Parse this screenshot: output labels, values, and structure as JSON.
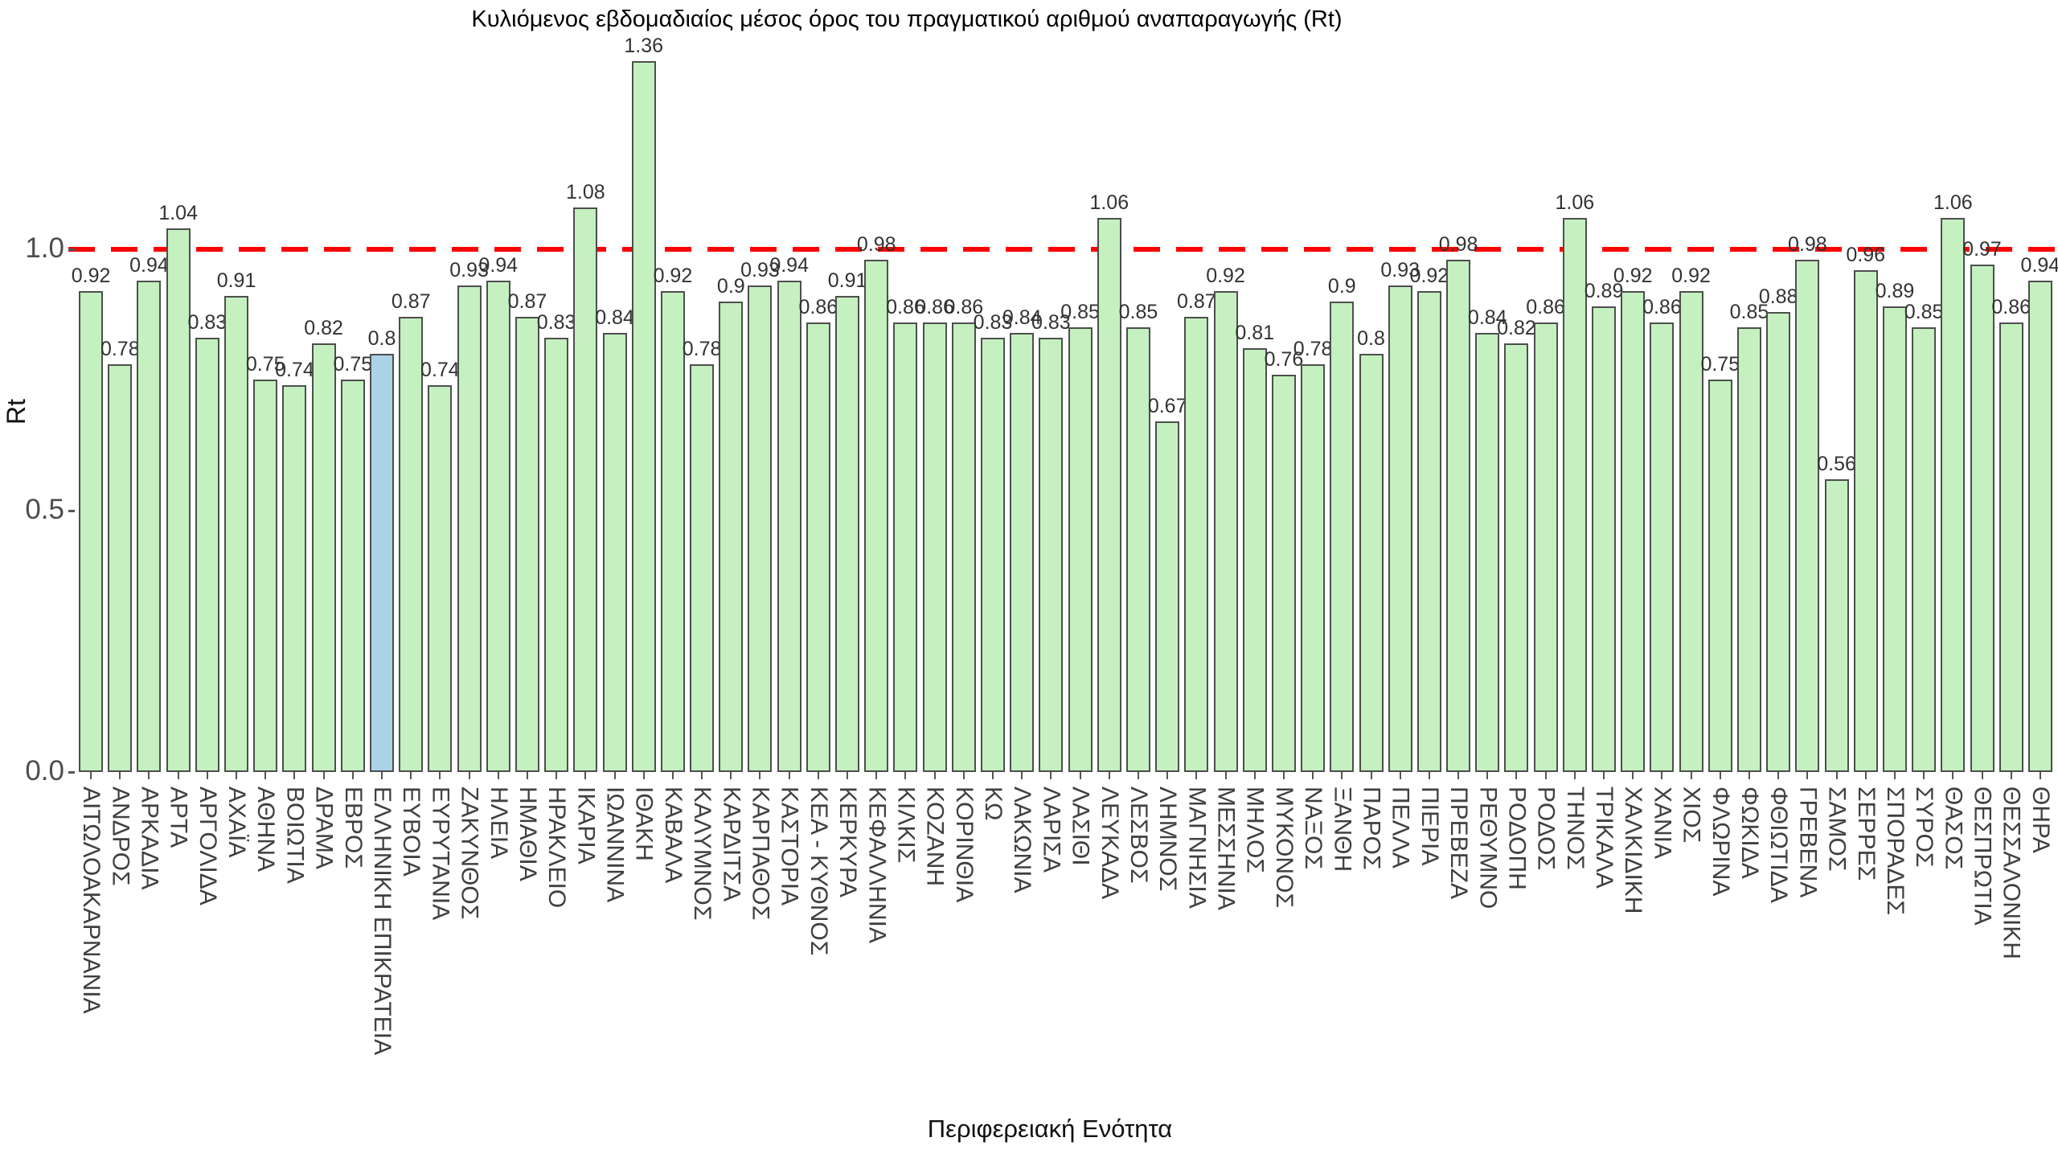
{
  "title": "Κυλιόμενος εβδομαδιαίος μέσος όρος του πραγματικού αριθμού αναπαραγωγής (Rt)",
  "axes": {
    "xlabel": "Περιφερειακή Ενότητα",
    "ylabel": "Rt",
    "yticks": [
      "0.0",
      "0.5",
      "1.0"
    ]
  },
  "colors": {
    "bar_fill": "#c4f1bf",
    "bar_highlight": "#abd3e8",
    "bar_border": "#4e4e4e",
    "reference_line": "#ff0000"
  },
  "chart_data": {
    "type": "bar",
    "title": "Κυλιόμενος εβδομαδιαίος μέσος όρος του πραγματικού αριθμού αναπαραγωγής (Rt)",
    "xlabel": "Περιφερειακή Ενότητα",
    "ylabel": "Rt",
    "ylim": [
      0,
      1.385
    ],
    "grid": false,
    "legend_position": "none",
    "reference_line": 1.0,
    "highlight_category": "ΕΛΛΗΝΙΚΗ ΕΠΙΚΡΑΤΕΙΑ",
    "categories": [
      "ΑΙΤΩΛΟΑΚΑΡΝΑΝΙΑ",
      "ΑΝΔΡΟΣ",
      "ΑΡΚΑΔΙΑ",
      "ΑΡΤΑ",
      "ΑΡΓΟΛΙΔΑ",
      "ΑΧΑΪΑ",
      "ΑΘΗΝΑ",
      "ΒΟΙΩΤΙΑ",
      "ΔΡΑΜΑ",
      "ΕΒΡΟΣ",
      "ΕΛΛΗΝΙΚΗ ΕΠΙΚΡΑΤΕΙΑ",
      "ΕΥΒΟΙΑ",
      "ΕΥΡΥΤΑΝΙΑ",
      "ΖΑΚΥΝΘΟΣ",
      "ΗΛΕΙΑ",
      "ΗΜΑΘΙΑ",
      "ΗΡΑΚΛΕΙΟ",
      "ΙΚΑΡΙΑ",
      "ΙΩΑΝΝΙΝΑ",
      "ΙΘΑΚΗ",
      "ΚΑΒΑΛΑ",
      "ΚΑΛΥΜΝΟΣ",
      "ΚΑΡΔΙΤΣΑ",
      "ΚΑΡΠΑΘΟΣ",
      "ΚΑΣΤΟΡΙΑ",
      "ΚΕΑ - ΚΥΘΝΟΣ",
      "ΚΕΡΚΥΡΑ",
      "ΚΕΦΑΛΛΗΝΙΑ",
      "ΚΙΛΚΙΣ",
      "ΚΟΖΑΝΗ",
      "ΚΟΡΙΝΘΙΑ",
      "ΚΩ",
      "ΛΑΚΩΝΙΑ",
      "ΛΑΡΙΣΑ",
      "ΛΑΣΙΘΙ",
      "ΛΕΥΚΑΔΑ",
      "ΛΕΣΒΟΣ",
      "ΛΗΜΝΟΣ",
      "ΜΑΓΝΗΣΙΑ",
      "ΜΕΣΣΗΝΙΑ",
      "ΜΗΛΟΣ",
      "ΜΥΚΟΝΟΣ",
      "ΝΑΞΟΣ",
      "ΞΑΝΘΗ",
      "ΠΑΡΟΣ",
      "ΠΕΛΛΑ",
      "ΠΙΕΡΙΑ",
      "ΠΡΕΒΕΖΑ",
      "ΡΕΘΥΜΝΟ",
      "ΡΟΔΟΠΗ",
      "ΡΟΔΟΣ",
      "ΤΗΝΟΣ",
      "ΤΡΙΚΑΛΑ",
      "ΧΑΛΚΙΔΙΚΗ",
      "ΧΑΝΙΑ",
      "ΧΙΟΣ",
      "ΦΛΩΡΙΝΑ",
      "ΦΩΚΙΔΑ",
      "ΦΘΙΩΤΙΔΑ",
      "ΓΡΕΒΕΝΑ",
      "ΣΑΜΟΣ",
      "ΣΕΡΡΕΣ",
      "ΣΠΟΡΑΔΕΣ",
      "ΣΥΡΟΣ",
      "ΘΑΣΟΣ",
      "ΘΕΣΠΡΩΤΙΑ",
      "ΘΕΣΣΑΛΟΝΙΚΗ",
      "ΘΗΡΑ"
    ],
    "values": [
      0.92,
      0.78,
      0.94,
      1.04,
      0.83,
      0.91,
      0.75,
      0.74,
      0.82,
      0.75,
      0.8,
      0.87,
      0.74,
      0.93,
      0.94,
      0.87,
      0.83,
      1.08,
      0.84,
      1.36,
      0.92,
      0.78,
      0.9,
      0.93,
      0.94,
      0.86,
      0.91,
      0.98,
      0.86,
      0.86,
      0.86,
      0.83,
      0.84,
      0.83,
      0.85,
      1.06,
      0.85,
      0.67,
      0.87,
      0.92,
      0.81,
      0.76,
      0.78,
      0.9,
      0.8,
      0.93,
      0.92,
      0.98,
      0.84,
      0.82,
      0.86,
      1.06,
      0.89,
      0.92,
      0.86,
      0.92,
      0.75,
      0.85,
      0.88,
      0.98,
      0.56,
      0.96,
      0.89,
      0.85,
      1.06,
      0.97,
      0.86,
      0.94
    ],
    "value_labels": [
      "0.92",
      "0.78",
      "0.94",
      "1.04",
      "0.83",
      "0.91",
      "0.75",
      "0.74",
      "0.82",
      "0.75",
      "0.8",
      "0.87",
      "0.74",
      "0.93",
      "0.94",
      "0.87",
      "0.83",
      "1.08",
      "0.84",
      "1.36",
      "0.92",
      "0.78",
      "0.9",
      "0.93",
      "0.94",
      "0.86",
      "0.91",
      "0.98",
      "0.86",
      "0.86",
      "0.86",
      "0.83",
      "0.84",
      "0.83",
      "0.85",
      "1.06",
      "0.85",
      "0.67",
      "0.87",
      "0.92",
      "0.81",
      "0.76",
      "0.78",
      "0.9",
      "0.8",
      "0.93",
      "0.92",
      "0.98",
      "0.84",
      "0.82",
      "0.86",
      "1.06",
      "0.89",
      "0.92",
      "0.86",
      "0.92",
      "0.75",
      "0.85",
      "0.88",
      "0.98",
      "0.56",
      "0.96",
      "0.89",
      "0.85",
      "1.06",
      "0.97",
      "0.86",
      "0.94"
    ]
  }
}
